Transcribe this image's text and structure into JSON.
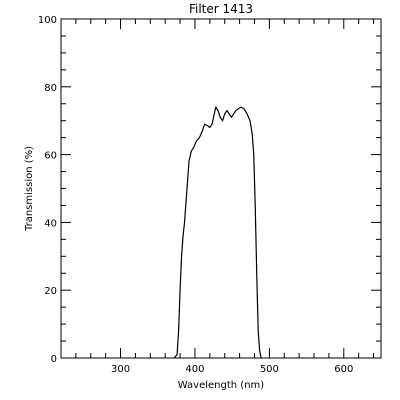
{
  "chart_data": {
    "type": "line",
    "title": "Filter  1413",
    "xlabel": "Wavelength (nm)",
    "ylabel": "Transmission (%)",
    "xlim": [
      220,
      650
    ],
    "ylim": [
      0,
      100
    ],
    "x_ticks": [
      300,
      400,
      500,
      600
    ],
    "x_tick_labels": [
      "300",
      "400",
      "500",
      "600"
    ],
    "y_ticks": [
      0,
      20,
      40,
      60,
      80,
      100
    ],
    "y_tick_labels": [
      "0",
      "20",
      "40",
      "60",
      "80",
      "100"
    ],
    "grid": false,
    "colors": {
      "line": "#000000",
      "axes": "#000000",
      "background": "#ffffff"
    },
    "series": [
      {
        "x": [
          372,
          376,
          378,
          380,
          382,
          384,
          386,
          388,
          390,
          392,
          395,
          398,
          402,
          406,
          410,
          413,
          417,
          420,
          423,
          426,
          428,
          431,
          434,
          437,
          440,
          443,
          446,
          449,
          452,
          455,
          458,
          462,
          466,
          470,
          474,
          477,
          479,
          481,
          483,
          485,
          487,
          489
        ],
        "y": [
          0,
          1,
          8,
          20,
          30,
          36,
          40,
          46,
          52,
          58,
          61,
          62,
          64,
          65,
          67,
          69,
          68.5,
          68,
          69,
          72,
          74,
          73,
          71,
          70,
          72,
          73,
          72,
          71,
          72,
          73,
          73.5,
          74,
          73.5,
          72,
          70,
          66,
          60,
          45,
          25,
          8,
          2,
          0
        ]
      }
    ]
  }
}
